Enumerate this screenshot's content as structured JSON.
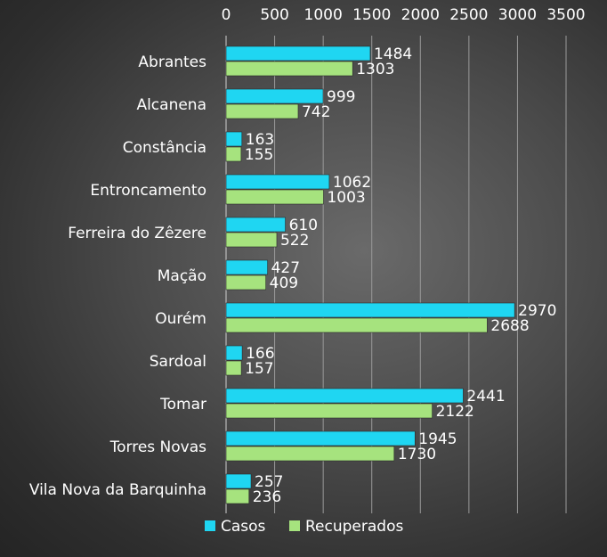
{
  "chart_data": {
    "type": "bar",
    "orientation": "horizontal",
    "categories": [
      "Abrantes",
      "Alcanena",
      "Constância",
      "Entroncamento",
      "Ferreira do Zêzere",
      "Mação",
      "Ourém",
      "Sardoal",
      "Tomar",
      "Torres Novas",
      "Vila Nova da Barquinha"
    ],
    "series": [
      {
        "name": "Casos",
        "color": "#1fd6f2",
        "values": [
          1484,
          999,
          163,
          1062,
          610,
          427,
          2970,
          166,
          2441,
          1945,
          257
        ]
      },
      {
        "name": "Recuperados",
        "color": "#a6e37e",
        "values": [
          1303,
          742,
          155,
          1003,
          522,
          409,
          2688,
          157,
          2122,
          1730,
          236
        ]
      }
    ],
    "xlim": [
      0,
      3500
    ],
    "xticks": [
      0,
      500,
      1000,
      1500,
      2000,
      2500,
      3000,
      3500
    ],
    "axis_position": "top",
    "grid": true,
    "legend_position": "bottom"
  }
}
